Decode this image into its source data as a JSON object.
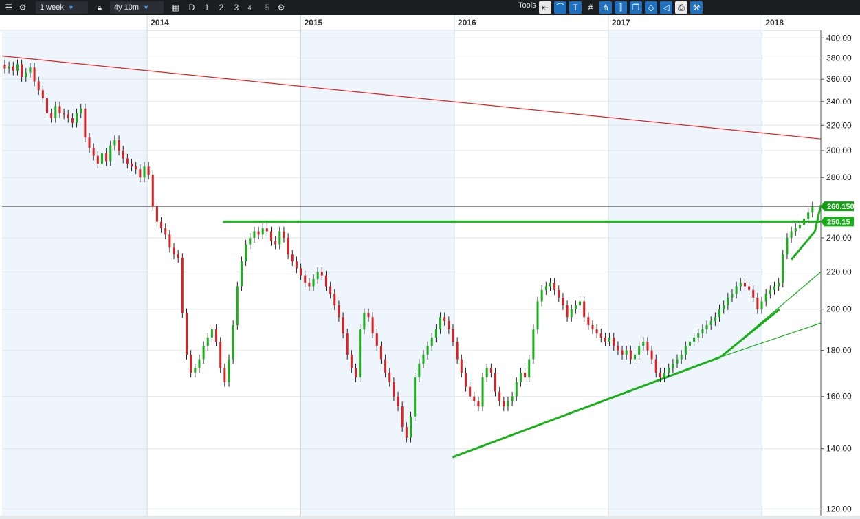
{
  "toolbar": {
    "interval": "1 week",
    "range": "4y 10m",
    "periods": [
      "D",
      "1",
      "2",
      "3",
      "4",
      "5"
    ],
    "tools_label": "Tools",
    "icons": [
      "list-icon",
      "gear-icon",
      "lock-icon",
      "calendar-icon",
      "gear-icon",
      "back-arrow-icon",
      "curve-icon",
      "text-icon",
      "grid-icon",
      "fork-icon",
      "candle-icon",
      "copy-icon",
      "shape-icon",
      "tag-icon",
      "print-icon",
      "settings-icon"
    ]
  },
  "chart_data": {
    "type": "candlestick",
    "x_axis": {
      "type": "date",
      "tick_labels": [
        "2014",
        "2015",
        "2016",
        "2017",
        "2018"
      ]
    },
    "y_axis": {
      "scale": "log",
      "range": [
        118,
        408
      ],
      "tick_labels": [
        "400.00",
        "380.00",
        "360.00",
        "340.00",
        "320.00",
        "300.00",
        "280.00",
        "260.00",
        "240.00",
        "220.00",
        "200.00",
        "180.00",
        "160.00",
        "140.00",
        "120.00"
      ]
    },
    "last_price": "260.150",
    "level_label": "250.15",
    "closes": [
      370,
      372,
      368,
      374,
      362,
      366,
      371,
      358,
      350,
      343,
      330,
      326,
      336,
      330,
      329,
      326,
      322,
      330,
      334,
      310,
      302,
      296,
      290,
      298,
      292,
      304,
      308,
      300,
      294,
      290,
      288,
      286,
      280,
      288,
      282,
      260,
      250,
      246,
      242,
      234,
      230,
      228,
      198,
      178,
      170,
      172,
      176,
      182,
      186,
      190,
      184,
      172,
      166,
      176,
      192,
      212,
      226,
      236,
      240,
      244,
      242,
      246,
      244,
      238,
      236,
      244,
      240,
      230,
      226,
      222,
      218,
      214,
      212,
      216,
      220,
      218,
      212,
      208,
      202,
      196,
      188,
      178,
      172,
      168,
      190,
      198,
      196,
      188,
      182,
      176,
      170,
      166,
      160,
      156,
      148,
      144,
      152,
      168,
      174,
      178,
      182,
      186,
      190,
      196,
      194,
      190,
      184,
      176,
      170,
      164,
      160,
      158,
      156,
      168,
      172,
      170,
      162,
      158,
      156,
      158,
      160,
      166,
      170,
      168,
      176,
      190,
      204,
      210,
      212,
      214,
      210,
      206,
      202,
      196,
      200,
      202,
      204,
      196,
      192,
      190,
      188,
      186,
      184,
      186,
      182,
      180,
      178,
      180,
      176,
      178,
      182,
      184,
      180,
      176,
      170,
      168,
      170,
      172,
      174,
      176,
      178,
      182,
      184,
      186,
      188,
      190,
      192,
      194,
      196,
      200,
      202,
      206,
      208,
      212,
      214,
      212,
      210,
      206,
      200,
      204,
      208,
      210,
      212,
      214,
      230,
      240,
      244,
      246,
      248,
      252,
      256,
      260
    ],
    "trendlines": [
      {
        "name": "",
        "color": "#e02020",
        "points": [
          [
            "2013-01-21",
            382
          ],
          [
            "2018-05-21",
            309
          ]
        ]
      },
      {
        "name": "",
        "color": "#18b018",
        "points": [
          [
            "2014-06-30",
            250.15
          ],
          [
            "2018-05-21",
            250.15
          ]
        ]
      },
      {
        "name": "",
        "color": "#18b018",
        "points": [
          [
            "2015-12-28",
            137
          ],
          [
            "2017-09-25",
            177
          ]
        ]
      },
      {
        "name": "",
        "color": "#18b018",
        "points": [
          [
            "2017-09-25",
            177
          ],
          [
            "2018-02-12",
            200
          ]
        ]
      },
      {
        "name": "",
        "color": "#18b018",
        "points": [
          [
            "2017-09-25",
            177
          ],
          [
            "2018-05-21",
            220
          ]
        ]
      },
      {
        "name": "",
        "color": "#18b018",
        "points": [
          [
            "2017-09-25",
            177
          ],
          [
            "2018-05-21",
            193
          ]
        ]
      },
      {
        "name": "",
        "color": "#18b018",
        "points": [
          [
            "2018-03-12",
            227
          ],
          [
            "2018-05-07",
            244
          ]
        ]
      },
      {
        "name": "",
        "color": "#18b018",
        "points": [
          [
            "2018-05-07",
            244
          ],
          [
            "2018-05-21",
            261
          ]
        ]
      }
    ],
    "colors": {
      "up": "#18b018",
      "down": "#e02020",
      "band": "#eef5fc",
      "grid": "#dfe4e8",
      "level": "#18b018"
    }
  }
}
